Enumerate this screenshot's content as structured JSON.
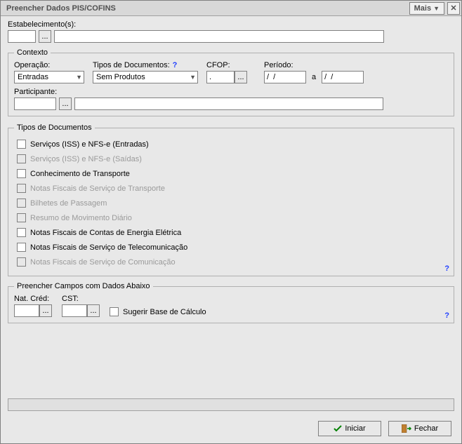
{
  "window": {
    "title": "Preencher Dados PIS/COFINS",
    "mais_label": "Mais"
  },
  "estabelecimento": {
    "label": "Estabelecimento(s):",
    "code_value": "",
    "name_value": ""
  },
  "contexto": {
    "legend": "Contexto",
    "operacao_label": "Operação:",
    "operacao_value": "Entradas",
    "tipos_label": "Tipos de Documentos:",
    "tipos_value": "Sem Produtos",
    "cfop_label": "CFOP:",
    "cfop_value": ".",
    "periodo_label": "Período:",
    "periodo_from": "/  /",
    "periodo_sep": "a",
    "periodo_to": "/  /",
    "participante_label": "Participante:",
    "participante_code": "",
    "participante_name": ""
  },
  "tipos_doc": {
    "legend": "Tipos de Documentos",
    "items": [
      {
        "label": "Serviços (ISS) e NFS-e (Entradas)",
        "enabled": true
      },
      {
        "label": "Serviços (ISS)  e NFS-e (Saídas)",
        "enabled": false
      },
      {
        "label": "Conhecimento de Transporte",
        "enabled": true
      },
      {
        "label": "Notas Fiscais de Serviço de Transporte",
        "enabled": false
      },
      {
        "label": "Bilhetes de Passagem",
        "enabled": false
      },
      {
        "label": "Resumo de Movimento Diário",
        "enabled": false
      },
      {
        "label": "Notas Fiscais de Contas de Energia Elétrica",
        "enabled": true
      },
      {
        "label": "Notas Fiscais de Serviço de Telecomunicação",
        "enabled": true
      },
      {
        "label": "Notas Fiscais de Serviço de Comunicação",
        "enabled": false
      }
    ]
  },
  "preencher": {
    "legend": "Preencher Campos com Dados Abaixo",
    "nat_label": "Nat. Créd:",
    "nat_value": "",
    "cst_label": "CST:",
    "cst_value": "",
    "sugerir_label": "Sugerir Base de Cálculo"
  },
  "buttons": {
    "iniciar": "Iniciar",
    "fechar": "Fechar"
  },
  "colors": {
    "window_bg": "#e8e8e8",
    "border": "#808080",
    "titlebar_bg": "#d8d8d8",
    "help": "#2040ff",
    "disabled_text": "#9a9a9a"
  }
}
